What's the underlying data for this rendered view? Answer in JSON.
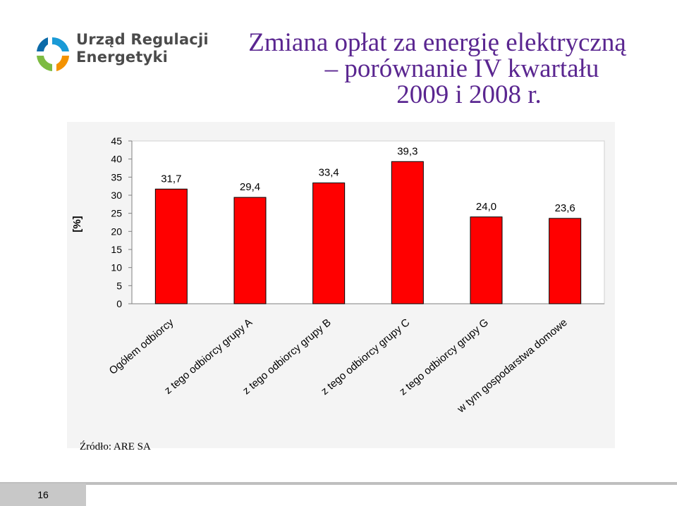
{
  "logo": {
    "line1": "Urząd Regulacji",
    "line2": "Energetyki",
    "icon": "ure-circular-arrows-logo",
    "colors": [
      "#1a9ad6",
      "#f39200",
      "#7dbb42",
      "#0b6aa8"
    ]
  },
  "title": {
    "line1": "Zmiana opłat za energię elektryczną",
    "line2": "– porównanie IV kwartału",
    "line3": "2009 i 2008 r."
  },
  "source": "Źródło: ARE SA",
  "page_number": "16",
  "colors": {
    "title": "#5a2690",
    "bar": "#ff0000"
  },
  "chart_data": {
    "type": "bar",
    "ylabel": "[%]",
    "ylim": [
      0,
      45
    ],
    "yticks": [
      0,
      5,
      10,
      15,
      20,
      25,
      30,
      35,
      40,
      45
    ],
    "grid": false,
    "categories": [
      "Ogółem odbiorcy",
      "z tego odbiorcy grupy A",
      "z tego odbiorcy grupy B",
      "z tego odbiorcy grupy C",
      "z tego odbiorcy grupy G",
      "w tym gospodarstwa domowe"
    ],
    "values": [
      31.7,
      29.4,
      33.4,
      39.3,
      24.0,
      23.6
    ],
    "value_labels": [
      "31,7",
      "29,4",
      "33,4",
      "39,3",
      "24,0",
      "23,6"
    ]
  }
}
